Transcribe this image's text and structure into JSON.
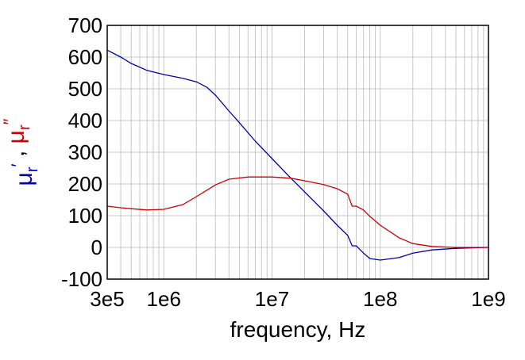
{
  "chart_data": {
    "type": "line",
    "xlabel": "frequency, Hz",
    "ylabel_parts": [
      {
        "text": "μ",
        "color": "#0000aa"
      },
      {
        "text": "r",
        "color": "#0000aa",
        "sub": true
      },
      {
        "text": "′",
        "color": "#0000aa",
        "sup": true
      },
      {
        "text": " , ",
        "color": "#000000"
      },
      {
        "text": "μ",
        "color": "#cc0000"
      },
      {
        "text": "r",
        "color": "#cc0000",
        "sub": true
      },
      {
        "text": "″",
        "color": "#cc0000",
        "sup": true
      }
    ],
    "x_scale": "log",
    "xlim": [
      300000,
      1000000000
    ],
    "ylim": [
      -100,
      700
    ],
    "x_ticks": [
      {
        "value": 300000,
        "label": "3e5"
      },
      {
        "value": 1000000,
        "label": "1e6"
      },
      {
        "value": 10000000,
        "label": "1e7"
      },
      {
        "value": 100000000,
        "label": "1e8"
      },
      {
        "value": 1000000000,
        "label": "1e9"
      }
    ],
    "y_ticks": [
      {
        "value": -100,
        "label": "-100"
      },
      {
        "value": 0,
        "label": "0"
      },
      {
        "value": 100,
        "label": "100"
      },
      {
        "value": 200,
        "label": "200"
      },
      {
        "value": 300,
        "label": "300"
      },
      {
        "value": 400,
        "label": "400"
      },
      {
        "value": 500,
        "label": "500"
      },
      {
        "value": 600,
        "label": "600"
      },
      {
        "value": 700,
        "label": "700"
      }
    ],
    "grid": true,
    "series": [
      {
        "color": "#0000aa",
        "points": [
          [
            300000,
            622
          ],
          [
            400000,
            600
          ],
          [
            500000,
            580
          ],
          [
            700000,
            558
          ],
          [
            1000000,
            545
          ],
          [
            1500000,
            533
          ],
          [
            2000000,
            522
          ],
          [
            2500000,
            505
          ],
          [
            3000000,
            480
          ],
          [
            4000000,
            430
          ],
          [
            5000000,
            393
          ],
          [
            7000000,
            335
          ],
          [
            10000000,
            280
          ],
          [
            14000000,
            228
          ],
          [
            20000000,
            175
          ],
          [
            30000000,
            115
          ],
          [
            40000000,
            70
          ],
          [
            50000000,
            38
          ],
          [
            55000000,
            5
          ],
          [
            60000000,
            5
          ],
          [
            70000000,
            -18
          ],
          [
            80000000,
            -35
          ],
          [
            100000000,
            -40
          ],
          [
            150000000,
            -32
          ],
          [
            200000000,
            -18
          ],
          [
            300000000,
            -8
          ],
          [
            500000000,
            -3
          ],
          [
            1000000000,
            0
          ]
        ]
      },
      {
        "color": "#cc0000",
        "points": [
          [
            300000,
            130
          ],
          [
            400000,
            125
          ],
          [
            500000,
            122
          ],
          [
            700000,
            118
          ],
          [
            1000000,
            120
          ],
          [
            1500000,
            135
          ],
          [
            2000000,
            160
          ],
          [
            3000000,
            197
          ],
          [
            4000000,
            215
          ],
          [
            6000000,
            222
          ],
          [
            10000000,
            222
          ],
          [
            15000000,
            218
          ],
          [
            20000000,
            210
          ],
          [
            30000000,
            198
          ],
          [
            40000000,
            185
          ],
          [
            50000000,
            168
          ],
          [
            55000000,
            130
          ],
          [
            60000000,
            130
          ],
          [
            70000000,
            118
          ],
          [
            80000000,
            98
          ],
          [
            100000000,
            70
          ],
          [
            150000000,
            30
          ],
          [
            200000000,
            12
          ],
          [
            300000000,
            3
          ],
          [
            500000000,
            0
          ],
          [
            1000000000,
            0
          ]
        ]
      }
    ]
  }
}
